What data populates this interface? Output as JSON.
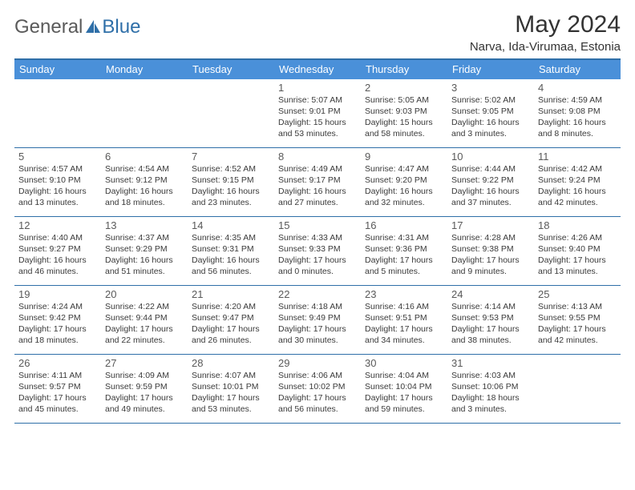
{
  "logo": {
    "general": "General",
    "blue": "Blue"
  },
  "title": "May 2024",
  "location": "Narva, Ida-Virumaa, Estonia",
  "colors": {
    "header_bg": "#4a90d9",
    "border": "#2f6fa8",
    "text": "#333333",
    "daynum": "#5a5a5a"
  },
  "day_names": [
    "Sunday",
    "Monday",
    "Tuesday",
    "Wednesday",
    "Thursday",
    "Friday",
    "Saturday"
  ],
  "weeks": [
    [
      null,
      null,
      null,
      {
        "d": "1",
        "sunrise": "5:07 AM",
        "sunset": "9:01 PM",
        "daylight": "15 hours and 53 minutes."
      },
      {
        "d": "2",
        "sunrise": "5:05 AM",
        "sunset": "9:03 PM",
        "daylight": "15 hours and 58 minutes."
      },
      {
        "d": "3",
        "sunrise": "5:02 AM",
        "sunset": "9:05 PM",
        "daylight": "16 hours and 3 minutes."
      },
      {
        "d": "4",
        "sunrise": "4:59 AM",
        "sunset": "9:08 PM",
        "daylight": "16 hours and 8 minutes."
      }
    ],
    [
      {
        "d": "5",
        "sunrise": "4:57 AM",
        "sunset": "9:10 PM",
        "daylight": "16 hours and 13 minutes."
      },
      {
        "d": "6",
        "sunrise": "4:54 AM",
        "sunset": "9:12 PM",
        "daylight": "16 hours and 18 minutes."
      },
      {
        "d": "7",
        "sunrise": "4:52 AM",
        "sunset": "9:15 PM",
        "daylight": "16 hours and 23 minutes."
      },
      {
        "d": "8",
        "sunrise": "4:49 AM",
        "sunset": "9:17 PM",
        "daylight": "16 hours and 27 minutes."
      },
      {
        "d": "9",
        "sunrise": "4:47 AM",
        "sunset": "9:20 PM",
        "daylight": "16 hours and 32 minutes."
      },
      {
        "d": "10",
        "sunrise": "4:44 AM",
        "sunset": "9:22 PM",
        "daylight": "16 hours and 37 minutes."
      },
      {
        "d": "11",
        "sunrise": "4:42 AM",
        "sunset": "9:24 PM",
        "daylight": "16 hours and 42 minutes."
      }
    ],
    [
      {
        "d": "12",
        "sunrise": "4:40 AM",
        "sunset": "9:27 PM",
        "daylight": "16 hours and 46 minutes."
      },
      {
        "d": "13",
        "sunrise": "4:37 AM",
        "sunset": "9:29 PM",
        "daylight": "16 hours and 51 minutes."
      },
      {
        "d": "14",
        "sunrise": "4:35 AM",
        "sunset": "9:31 PM",
        "daylight": "16 hours and 56 minutes."
      },
      {
        "d": "15",
        "sunrise": "4:33 AM",
        "sunset": "9:33 PM",
        "daylight": "17 hours and 0 minutes."
      },
      {
        "d": "16",
        "sunrise": "4:31 AM",
        "sunset": "9:36 PM",
        "daylight": "17 hours and 5 minutes."
      },
      {
        "d": "17",
        "sunrise": "4:28 AM",
        "sunset": "9:38 PM",
        "daylight": "17 hours and 9 minutes."
      },
      {
        "d": "18",
        "sunrise": "4:26 AM",
        "sunset": "9:40 PM",
        "daylight": "17 hours and 13 minutes."
      }
    ],
    [
      {
        "d": "19",
        "sunrise": "4:24 AM",
        "sunset": "9:42 PM",
        "daylight": "17 hours and 18 minutes."
      },
      {
        "d": "20",
        "sunrise": "4:22 AM",
        "sunset": "9:44 PM",
        "daylight": "17 hours and 22 minutes."
      },
      {
        "d": "21",
        "sunrise": "4:20 AM",
        "sunset": "9:47 PM",
        "daylight": "17 hours and 26 minutes."
      },
      {
        "d": "22",
        "sunrise": "4:18 AM",
        "sunset": "9:49 PM",
        "daylight": "17 hours and 30 minutes."
      },
      {
        "d": "23",
        "sunrise": "4:16 AM",
        "sunset": "9:51 PM",
        "daylight": "17 hours and 34 minutes."
      },
      {
        "d": "24",
        "sunrise": "4:14 AM",
        "sunset": "9:53 PM",
        "daylight": "17 hours and 38 minutes."
      },
      {
        "d": "25",
        "sunrise": "4:13 AM",
        "sunset": "9:55 PM",
        "daylight": "17 hours and 42 minutes."
      }
    ],
    [
      {
        "d": "26",
        "sunrise": "4:11 AM",
        "sunset": "9:57 PM",
        "daylight": "17 hours and 45 minutes."
      },
      {
        "d": "27",
        "sunrise": "4:09 AM",
        "sunset": "9:59 PM",
        "daylight": "17 hours and 49 minutes."
      },
      {
        "d": "28",
        "sunrise": "4:07 AM",
        "sunset": "10:01 PM",
        "daylight": "17 hours and 53 minutes."
      },
      {
        "d": "29",
        "sunrise": "4:06 AM",
        "sunset": "10:02 PM",
        "daylight": "17 hours and 56 minutes."
      },
      {
        "d": "30",
        "sunrise": "4:04 AM",
        "sunset": "10:04 PM",
        "daylight": "17 hours and 59 minutes."
      },
      {
        "d": "31",
        "sunrise": "4:03 AM",
        "sunset": "10:06 PM",
        "daylight": "18 hours and 3 minutes."
      },
      null
    ]
  ],
  "labels": {
    "sunrise": "Sunrise:",
    "sunset": "Sunset:",
    "daylight": "Daylight:"
  }
}
